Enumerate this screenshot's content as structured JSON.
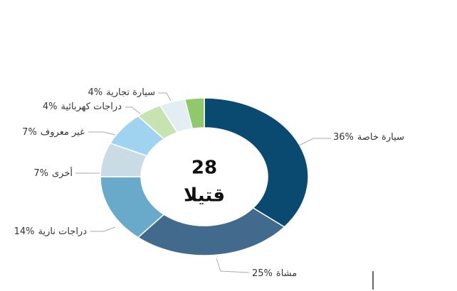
{
  "chart_data": {
    "type": "donut",
    "center_value": "28",
    "center_label": "قتيلا",
    "categories": [
      "سيارة خاصة",
      "مشاة",
      "دراجات نارية",
      "أخرى",
      "غير معروف",
      "دراجات كهربائية",
      "سيارة تجارية",
      null
    ],
    "values": [
      36,
      25,
      14,
      7,
      7,
      4,
      4,
      3
    ],
    "value_labels": [
      "36%",
      "25%",
      "14%",
      "7%",
      "7%",
      "4%",
      "4%",
      null
    ],
    "colors": [
      "#0b4a70",
      "#416a8c",
      "#69a9c9",
      "#c9dbe5",
      "#9fd3ef",
      "#c8e3b2",
      "#e3eef3",
      "#8fc96b"
    ]
  }
}
